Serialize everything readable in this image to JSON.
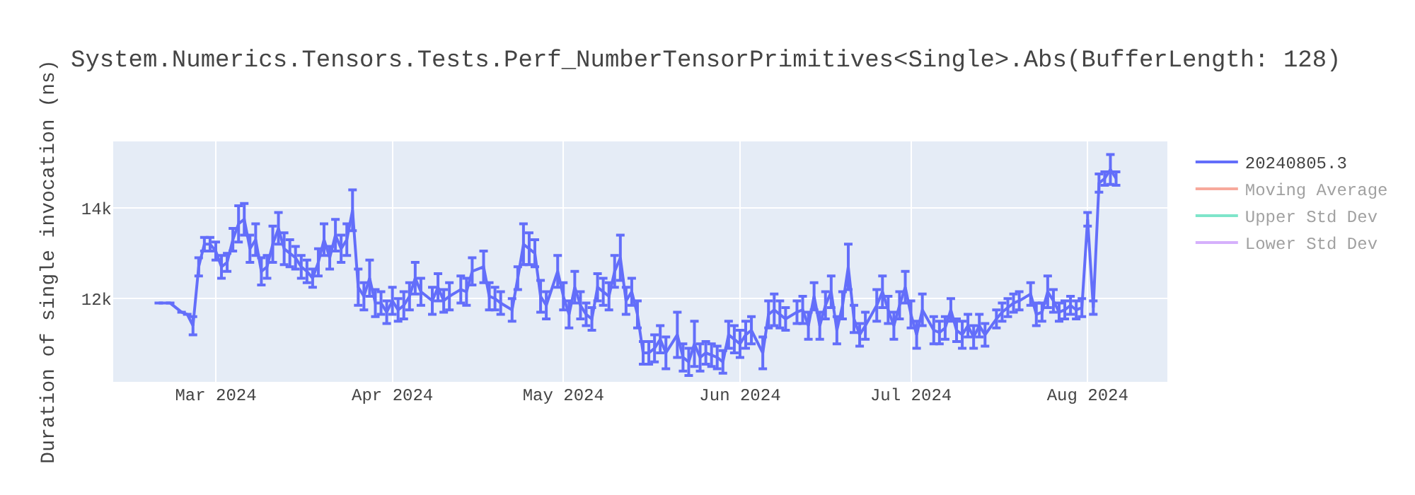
{
  "chart_data": {
    "type": "line",
    "title": "System.Numerics.Tensors.Tests.Perf_NumberTensorPrimitives<Single>.Abs(BufferLength: 128)",
    "ylabel": "Duration of single invocation (ns)",
    "xlim": [
      "2024-02-12",
      "2024-08-15"
    ],
    "xticks": [
      {
        "value": "2024-03-01",
        "label": "Mar 2024"
      },
      {
        "value": "2024-04-01",
        "label": "Apr 2024"
      },
      {
        "value": "2024-05-01",
        "label": "May 2024"
      },
      {
        "value": "2024-06-01",
        "label": "Jun 2024"
      },
      {
        "value": "2024-07-01",
        "label": "Jul 2024"
      },
      {
        "value": "2024-08-01",
        "label": "Aug 2024"
      }
    ],
    "ylim": [
      10160,
      15470
    ],
    "yticks": [
      {
        "value": 12000,
        "label": "12k"
      },
      {
        "value": 14000,
        "label": "14k"
      }
    ],
    "grid": true,
    "legend": "top right",
    "line_style": "solid",
    "series": [
      {
        "name": "20240805.3",
        "color": "#636efa",
        "x": [
          "2024-02-20",
          "2024-02-22",
          "2024-02-24",
          "2024-02-25",
          "2024-02-26",
          "2024-02-27",
          "2024-02-28",
          "2024-02-29",
          "2024-03-01",
          "2024-03-02",
          "2024-03-03",
          "2024-03-04",
          "2024-03-05",
          "2024-03-06",
          "2024-03-07",
          "2024-03-08",
          "2024-03-09",
          "2024-03-10",
          "2024-03-11",
          "2024-03-12",
          "2024-03-13",
          "2024-03-14",
          "2024-03-15",
          "2024-03-16",
          "2024-03-17",
          "2024-03-18",
          "2024-03-19",
          "2024-03-20",
          "2024-03-21",
          "2024-03-22",
          "2024-03-23",
          "2024-03-24",
          "2024-03-25",
          "2024-03-26",
          "2024-03-27",
          "2024-03-28",
          "2024-03-29",
          "2024-03-30",
          "2024-03-31",
          "2024-04-01",
          "2024-04-02",
          "2024-04-03",
          "2024-04-04",
          "2024-04-05",
          "2024-04-06",
          "2024-04-08",
          "2024-04-09",
          "2024-04-10",
          "2024-04-11",
          "2024-04-13",
          "2024-04-14",
          "2024-04-15",
          "2024-04-17",
          "2024-04-18",
          "2024-04-19",
          "2024-04-20",
          "2024-04-22",
          "2024-04-23",
          "2024-04-24",
          "2024-04-25",
          "2024-04-26",
          "2024-04-27",
          "2024-04-28",
          "2024-04-30",
          "2024-05-01",
          "2024-05-02",
          "2024-05-03",
          "2024-05-04",
          "2024-05-05",
          "2024-05-06",
          "2024-05-07",
          "2024-05-08",
          "2024-05-09",
          "2024-05-10",
          "2024-05-11",
          "2024-05-12",
          "2024-05-13",
          "2024-05-14",
          "2024-05-15",
          "2024-05-16",
          "2024-05-17",
          "2024-05-18",
          "2024-05-19",
          "2024-05-21",
          "2024-05-22",
          "2024-05-23",
          "2024-05-24",
          "2024-05-25",
          "2024-05-26",
          "2024-05-27",
          "2024-05-28",
          "2024-05-29",
          "2024-05-30",
          "2024-05-31",
          "2024-06-01",
          "2024-06-02",
          "2024-06-03",
          "2024-06-05",
          "2024-06-06",
          "2024-06-07",
          "2024-06-08",
          "2024-06-09",
          "2024-06-11",
          "2024-06-12",
          "2024-06-13",
          "2024-06-14",
          "2024-06-15",
          "2024-06-16",
          "2024-06-17",
          "2024-06-18",
          "2024-06-19",
          "2024-06-20",
          "2024-06-21",
          "2024-06-22",
          "2024-06-23",
          "2024-06-25",
          "2024-06-26",
          "2024-06-27",
          "2024-06-28",
          "2024-06-29",
          "2024-06-30",
          "2024-07-01",
          "2024-07-02",
          "2024-07-03",
          "2024-07-05",
          "2024-07-06",
          "2024-07-07",
          "2024-07-08",
          "2024-07-09",
          "2024-07-10",
          "2024-07-11",
          "2024-07-12",
          "2024-07-13",
          "2024-07-14",
          "2024-07-16",
          "2024-07-17",
          "2024-07-18",
          "2024-07-19",
          "2024-07-20",
          "2024-07-22",
          "2024-07-23",
          "2024-07-24",
          "2024-07-25",
          "2024-07-26",
          "2024-07-27",
          "2024-07-28",
          "2024-07-29",
          "2024-07-30",
          "2024-07-31",
          "2024-08-01",
          "2024-08-02",
          "2024-08-03",
          "2024-08-04",
          "2024-08-05",
          "2024-08-06"
        ],
        "values": [
          11900,
          11900,
          11700,
          11650,
          11400,
          12700,
          13200,
          13200,
          13050,
          12700,
          12800,
          13300,
          13650,
          13750,
          13100,
          13300,
          12600,
          12700,
          13200,
          13550,
          13100,
          13000,
          12900,
          12700,
          12600,
          12450,
          12800,
          13300,
          12900,
          13400,
          13100,
          13300,
          13950,
          12250,
          12050,
          12450,
          11900,
          11900,
          11700,
          11950,
          11750,
          11850,
          12050,
          12450,
          12150,
          11950,
          12250,
          11950,
          12050,
          12200,
          12150,
          12600,
          12700,
          12050,
          12000,
          11900,
          11750,
          12450,
          13200,
          13100,
          13000,
          12050,
          11850,
          12600,
          12050,
          11650,
          12250,
          11850,
          11650,
          11550,
          12250,
          12150,
          12050,
          12600,
          12900,
          11950,
          12150,
          11650,
          10800,
          10800,
          10900,
          11100,
          10800,
          11200,
          10700,
          10600,
          11000,
          10700,
          10800,
          10750,
          10700,
          10600,
          11200,
          11100,
          11000,
          11200,
          11300,
          10800,
          11650,
          11750,
          11650,
          11550,
          11700,
          11750,
          11400,
          12050,
          11400,
          11850,
          12150,
          11300,
          11850,
          12700,
          11550,
          11200,
          11400,
          11850,
          12150,
          11750,
          11400,
          11850,
          12250,
          11650,
          11200,
          11750,
          11300,
          11250,
          11350,
          11750,
          11300,
          11200,
          11400,
          11150,
          11400,
          11200,
          11550,
          11700,
          11800,
          11900,
          11950,
          12100,
          11650,
          11700,
          12150,
          11950,
          11700,
          11750,
          11850,
          11750,
          11800,
          13750,
          11800,
          14550,
          14650,
          14850,
          14650
        ],
        "errors": [
          null,
          null,
          null,
          null,
          200,
          200,
          150,
          150,
          200,
          250,
          200,
          250,
          400,
          350,
          300,
          350,
          300,
          250,
          400,
          350,
          350,
          300,
          250,
          250,
          250,
          200,
          300,
          350,
          250,
          350,
          300,
          350,
          450,
          400,
          300,
          400,
          300,
          250,
          250,
          300,
          250,
          300,
          300,
          350,
          300,
          300,
          300,
          250,
          300,
          300,
          300,
          300,
          350,
          300,
          250,
          250,
          250,
          250,
          450,
          350,
          300,
          350,
          300,
          350,
          300,
          300,
          350,
          300,
          250,
          250,
          300,
          300,
          300,
          350,
          500,
          300,
          300,
          300,
          250,
          250,
          300,
          300,
          350,
          500,
          300,
          300,
          500,
          300,
          250,
          250,
          250,
          250,
          300,
          300,
          300,
          300,
          300,
          350,
          300,
          350,
          300,
          250,
          250,
          300,
          300,
          300,
          300,
          300,
          350,
          300,
          300,
          500,
          300,
          250,
          300,
          350,
          350,
          300,
          300,
          300,
          350,
          300,
          300,
          350,
          300,
          250,
          250,
          250,
          250,
          300,
          250,
          250,
          250,
          250,
          200,
          200,
          200,
          200,
          200,
          250,
          250,
          200,
          350,
          250,
          200,
          200,
          200,
          200,
          200,
          150,
          150,
          200,
          150,
          330,
          150
        ]
      },
      {
        "name": "Moving Average",
        "color": "#ef553b"
      },
      {
        "name": "Upper Std Dev",
        "color": "#00cc96"
      },
      {
        "name": "Lower Std Dev",
        "color": "#ab63fa"
      }
    ]
  }
}
